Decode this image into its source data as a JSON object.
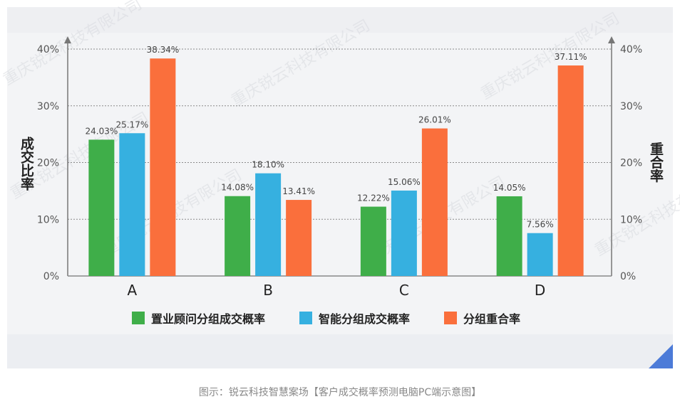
{
  "chart_data": {
    "type": "bar",
    "categories": [
      "A",
      "B",
      "C",
      "D"
    ],
    "series": [
      {
        "name": "置业顾问分组成交概率",
        "values": [
          24.03,
          14.08,
          12.22,
          14.05
        ],
        "labels": [
          "24.03%",
          "14.08%",
          "12.22%",
          "14.05%"
        ],
        "color": "#3fae49"
      },
      {
        "name": "智能分组成交概率",
        "values": [
          25.17,
          18.1,
          15.06,
          7.56
        ],
        "labels": [
          "25.17%",
          "18.10%",
          "15.06%",
          "7.56%"
        ],
        "color": "#36b0e0"
      },
      {
        "name": "分组重合率",
        "values": [
          38.34,
          13.41,
          26.01,
          37.11
        ],
        "labels": [
          "38.34%",
          "13.41%",
          "26.01%",
          "37.11%"
        ],
        "color": "#fa6f3c"
      }
    ],
    "ylim": [
      0,
      40
    ],
    "yticks": [
      0,
      10,
      20,
      30,
      40
    ],
    "ytick_labels": [
      "0%",
      "10%",
      "20%",
      "30%",
      "40%"
    ],
    "ylabel_left": "成交比率",
    "ylabel_right": "重合率",
    "grid": true,
    "legend_position": "bottom"
  },
  "watermark": "重庆锐云科技有限公司",
  "caption": "图示：锐云科技智慧案场【客户成交概率预测电脑PC端示意图】"
}
